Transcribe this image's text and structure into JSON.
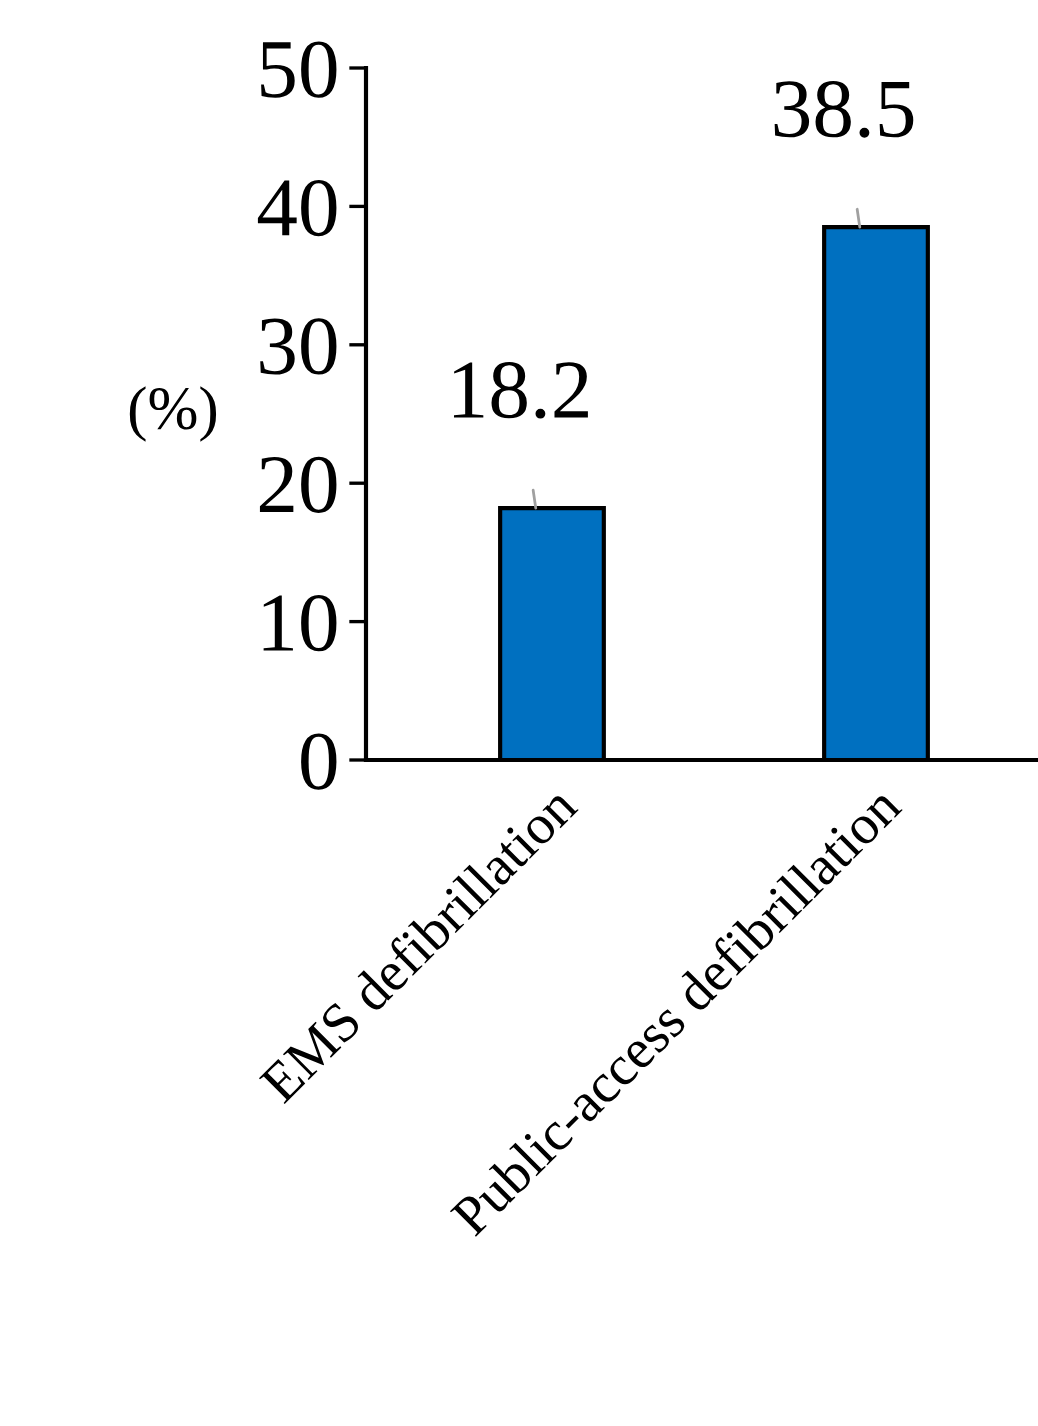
{
  "chart_data": {
    "type": "bar",
    "ylabel": "(%)",
    "categories": [
      "EMS defibrillation",
      "Public-access defibrillation"
    ],
    "values": [
      18.2,
      38.5
    ],
    "color": "#0070c0",
    "ylim": [
      0,
      50
    ],
    "yticks": [
      0,
      10,
      20,
      30,
      40,
      50
    ],
    "grid": false,
    "data_labels": true
  }
}
